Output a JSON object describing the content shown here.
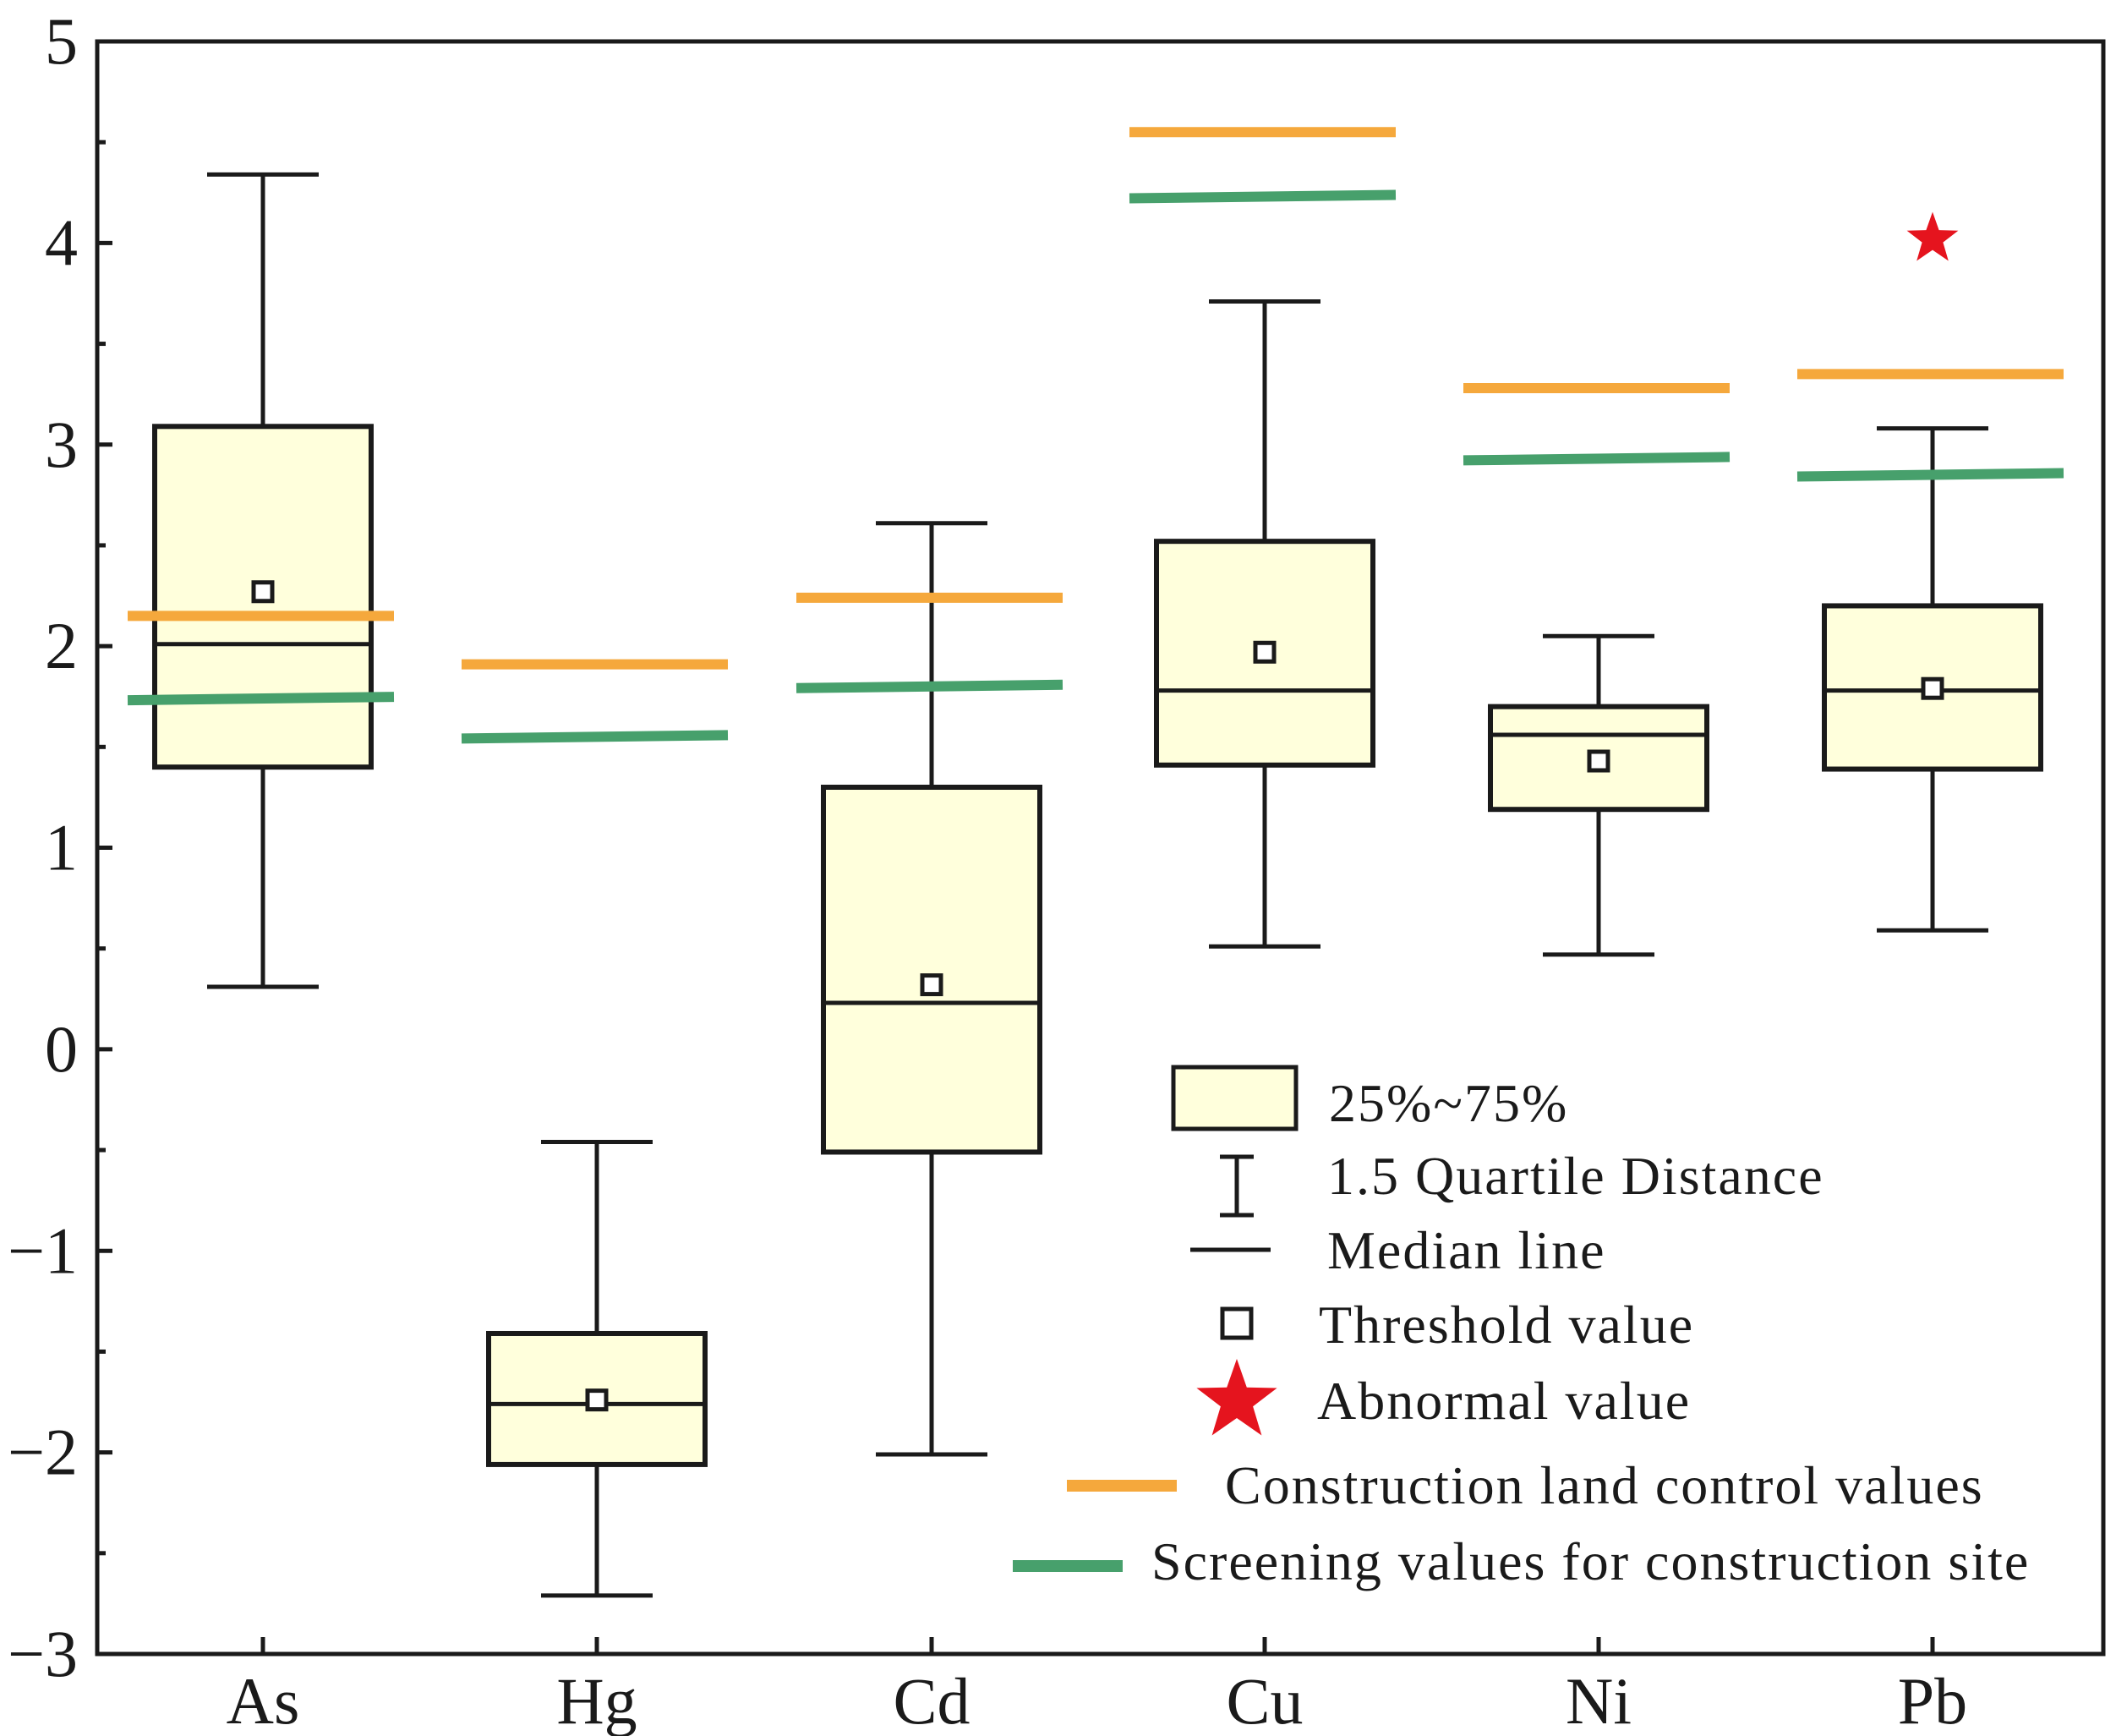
{
  "chart_data": {
    "type": "boxplot",
    "ylim": [
      -3,
      5
    ],
    "yticks": [
      {
        "value": 5,
        "label": "5"
      },
      {
        "value": 4,
        "label": "4"
      },
      {
        "value": 3,
        "label": "3"
      },
      {
        "value": 2,
        "label": "2"
      },
      {
        "value": 1,
        "label": "1"
      },
      {
        "value": 0,
        "label": "0"
      },
      {
        "value": -1,
        "label": "−1"
      },
      {
        "value": -2,
        "label": "−2"
      },
      {
        "value": -3,
        "label": "−3"
      }
    ],
    "categories": [
      "As",
      "Hg",
      "Cd",
      "Cu",
      "Ni",
      "Pb"
    ],
    "boxes": [
      {
        "name": "As",
        "whisker_low": 0.31,
        "q1": 1.4,
        "median": 2.01,
        "q3": 3.09,
        "whisker_high": 4.34,
        "threshold": 2.27,
        "construction_control": 2.15,
        "screening": 1.74
      },
      {
        "name": "Hg",
        "whisker_low": -2.71,
        "q1": -2.06,
        "median": -1.76,
        "q3": -1.41,
        "whisker_high": -0.46,
        "threshold": -1.74,
        "construction_control": 1.91,
        "screening": 1.55
      },
      {
        "name": "Cd",
        "whisker_low": -2.01,
        "q1": -0.51,
        "median": 0.23,
        "q3": 1.3,
        "whisker_high": 2.61,
        "threshold": 0.32,
        "construction_control": 2.24,
        "screening": 1.8
      },
      {
        "name": "Cu",
        "whisker_low": 0.51,
        "q1": 1.41,
        "median": 1.78,
        "q3": 2.52,
        "whisker_high": 3.71,
        "threshold": 1.97,
        "construction_control": 4.55,
        "screening": 4.23
      },
      {
        "name": "Ni",
        "whisker_low": 0.47,
        "q1": 1.19,
        "median": 1.56,
        "q3": 1.7,
        "whisker_high": 2.05,
        "threshold": 1.43,
        "construction_control": 3.28,
        "screening": 2.93
      },
      {
        "name": "Pb",
        "whisker_low": 0.59,
        "q1": 1.39,
        "median": 1.78,
        "q3": 2.2,
        "whisker_high": 3.08,
        "threshold": 1.79,
        "construction_control": 3.35,
        "screening": 2.85,
        "abnormal": 4.02
      }
    ],
    "legend": {
      "position": "bottom-right",
      "box": "25%~75%",
      "whisker": "1.5 Quartile Distance",
      "median": "Median line",
      "threshold": "Threshold value",
      "abnormal": "Abnormal value",
      "control": "Construction land control values",
      "screening": "Screening values for construction site"
    },
    "colors": {
      "box_fill": "#ffffdc",
      "outline": "#1a1a1a",
      "control": "#f5a83c",
      "screening": "#47a06c",
      "abnormal": "#e5141e"
    }
  }
}
